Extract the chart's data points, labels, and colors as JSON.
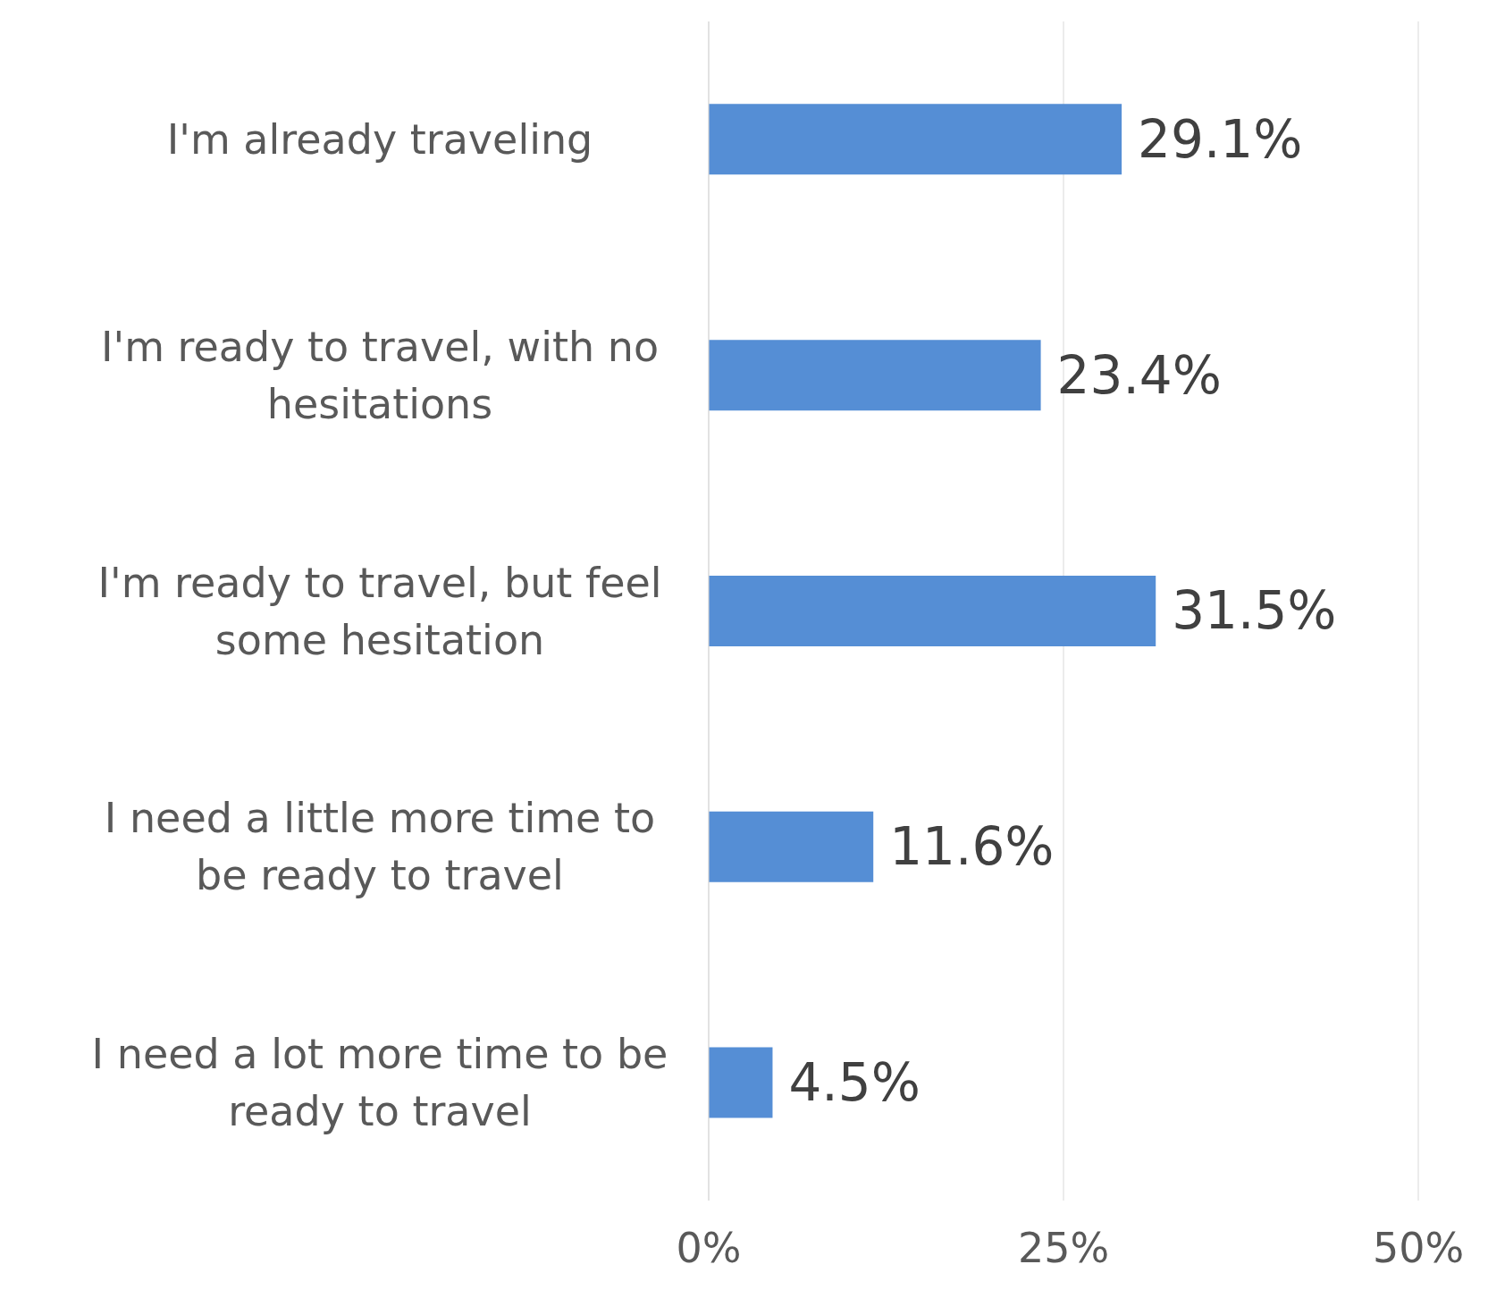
{
  "chart_data": {
    "type": "bar",
    "orientation": "horizontal",
    "categories": [
      "I'm already traveling",
      "I'm ready to travel, with no hesitations",
      "I'm ready to travel, but feel some hesitation",
      "I need a little more time to be ready to travel",
      "I need a lot more time to be ready to travel"
    ],
    "values": [
      29.1,
      23.4,
      31.5,
      11.6,
      4.5
    ],
    "value_labels": [
      "29.1%",
      "23.4%",
      "31.5%",
      "11.6%",
      "4.5%"
    ],
    "color": "#558ed5",
    "xlim": [
      0,
      50
    ],
    "xticks": [
      {
        "value": 0,
        "label": "0%"
      },
      {
        "value": 25,
        "label": "25%"
      },
      {
        "value": 50,
        "label": "50%"
      }
    ],
    "grid": "x",
    "legend": false
  }
}
